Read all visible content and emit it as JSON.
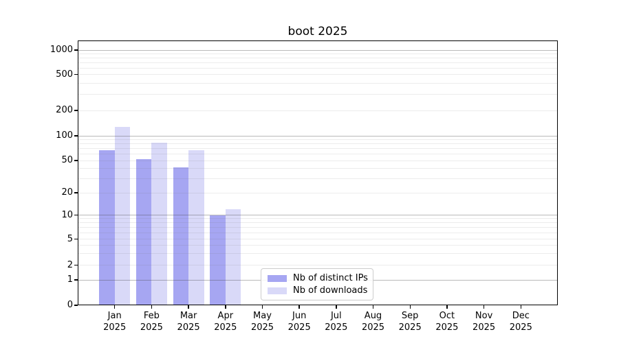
{
  "chart": {
    "title": "boot 2025",
    "legend": {
      "items": [
        {
          "label": "Nb of distinct IPs",
          "color": "#a6a6f2"
        },
        {
          "label": "Nb of downloads",
          "color": "#d9d9f8"
        }
      ]
    }
  },
  "chart_data": {
    "type": "bar",
    "title": "boot 2025",
    "xlabel": "",
    "ylabel": "",
    "categories": [
      "Jan 2025",
      "Feb 2025",
      "Mar 2025",
      "Apr 2025",
      "May 2025",
      "Jun 2025",
      "Jul 2025",
      "Aug 2025",
      "Sep 2025",
      "Oct 2025",
      "Nov 2025",
      "Dec 2025"
    ],
    "series": [
      {
        "name": "Nb of distinct IPs",
        "color": "#a6a6f2",
        "values": [
          67,
          52,
          41,
          10,
          0,
          0,
          0,
          0,
          0,
          0,
          0,
          0
        ]
      },
      {
        "name": "Nb of downloads",
        "color": "#d9d9f8",
        "values": [
          128,
          83,
          67,
          12,
          0,
          0,
          0,
          0,
          0,
          0,
          0,
          0
        ]
      }
    ],
    "yticks": [
      0,
      1,
      2,
      5,
      10,
      20,
      50,
      100,
      200,
      500,
      1000
    ],
    "ytick_labels": [
      "0",
      "1",
      "2",
      "5",
      "10",
      "20",
      "50",
      "100",
      "200",
      "500",
      "1000"
    ],
    "ylim": [
      0,
      1280
    ],
    "yscale": "log above 1, linear between 0 and 1",
    "grid": "horizontal gridlines: dark at powers of 10, light at 2-9 multiples",
    "legend_position": "inside plot, bottom left-of-center",
    "bar_layout": "two series side by side per month, no gap"
  }
}
